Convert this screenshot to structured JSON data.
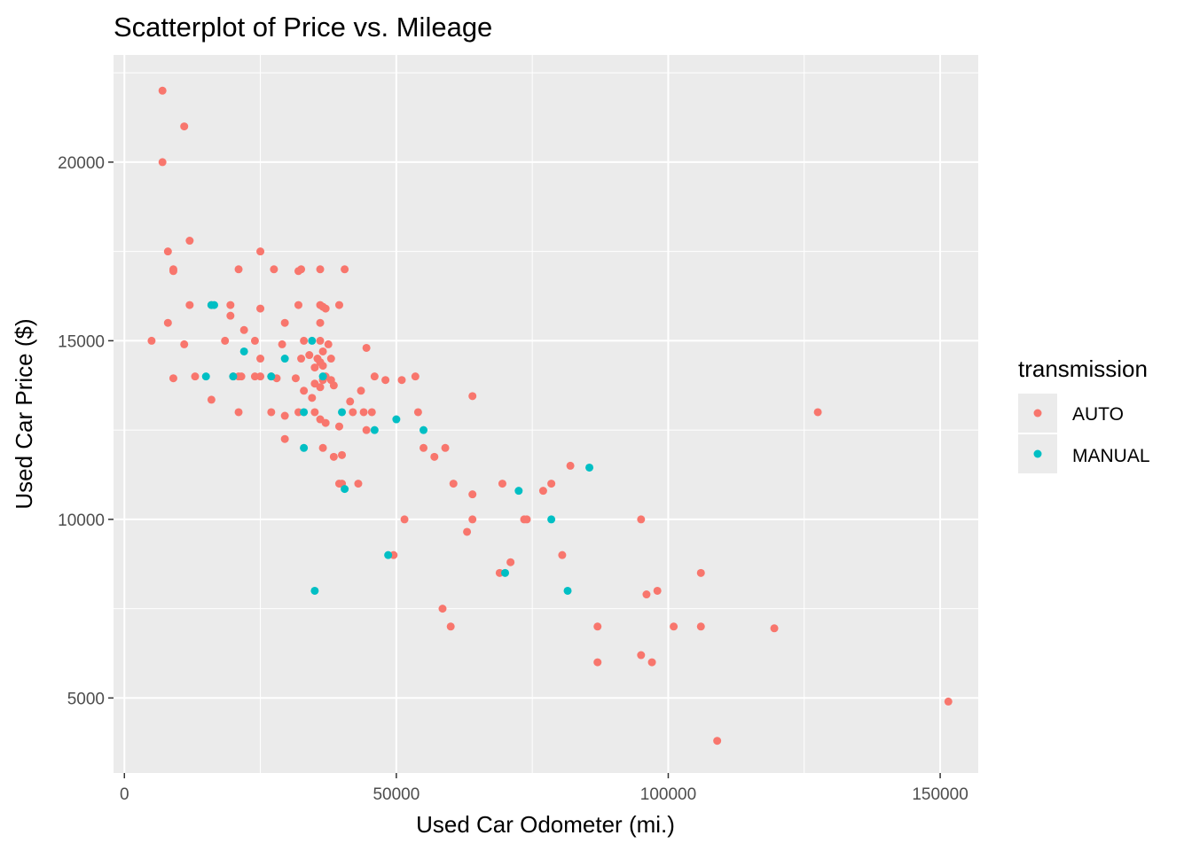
{
  "chart_data": {
    "type": "scatter",
    "title": "Scatterplot of Price vs. Mileage",
    "xlabel": "Used Car Odometer (mi.)",
    "ylabel": "Used Car Price ($)",
    "xlim": [
      -2000,
      157000
    ],
    "ylim": [
      2900,
      23000
    ],
    "x_ticks": [
      0,
      50000,
      100000,
      150000
    ],
    "x_tick_labels": [
      "0",
      "50000",
      "100000",
      "150000"
    ],
    "y_ticks": [
      5000,
      10000,
      15000,
      20000
    ],
    "y_tick_labels": [
      "5000",
      "10000",
      "15000",
      "20000"
    ],
    "grid": true,
    "background": "#ebebeb",
    "legend": {
      "title": "transmission",
      "placement": "right"
    },
    "series": [
      {
        "name": "AUTO",
        "color": "#f8766d",
        "points": [
          [
            7000,
            22000
          ],
          [
            11000,
            21000
          ],
          [
            7000,
            20000
          ],
          [
            12000,
            17800
          ],
          [
            8000,
            17500
          ],
          [
            25000,
            17500
          ],
          [
            9000,
            17000
          ],
          [
            9000,
            16950
          ],
          [
            21000,
            17000
          ],
          [
            27500,
            17000
          ],
          [
            32000,
            16950
          ],
          [
            32500,
            17000
          ],
          [
            36000,
            17000
          ],
          [
            40500,
            17000
          ],
          [
            12000,
            16000
          ],
          [
            16000,
            16000
          ],
          [
            19500,
            16000
          ],
          [
            25000,
            15900
          ],
          [
            32000,
            16000
          ],
          [
            36000,
            16000
          ],
          [
            36500,
            15950
          ],
          [
            37000,
            15900
          ],
          [
            39500,
            16000
          ],
          [
            8000,
            15500
          ],
          [
            19500,
            15700
          ],
          [
            29500,
            15500
          ],
          [
            36000,
            15500
          ],
          [
            22000,
            15300
          ],
          [
            5000,
            15000
          ],
          [
            11000,
            14900
          ],
          [
            18500,
            15000
          ],
          [
            24000,
            15000
          ],
          [
            29000,
            14900
          ],
          [
            33000,
            15000
          ],
          [
            36000,
            15000
          ],
          [
            37500,
            14900
          ],
          [
            44500,
            14800
          ],
          [
            25000,
            14500
          ],
          [
            32500,
            14500
          ],
          [
            34000,
            14600
          ],
          [
            35500,
            14500
          ],
          [
            36000,
            14400
          ],
          [
            36500,
            14700
          ],
          [
            36500,
            14300
          ],
          [
            35000,
            14250
          ],
          [
            38000,
            14500
          ],
          [
            9000,
            13950
          ],
          [
            13000,
            14000
          ],
          [
            20000,
            14000
          ],
          [
            21000,
            14000
          ],
          [
            21500,
            14000
          ],
          [
            24000,
            14000
          ],
          [
            25000,
            14000
          ],
          [
            27000,
            14000
          ],
          [
            28000,
            13950
          ],
          [
            31500,
            13950
          ],
          [
            33000,
            13600
          ],
          [
            35000,
            13800
          ],
          [
            36000,
            13700
          ],
          [
            36500,
            13900
          ],
          [
            37000,
            14000
          ],
          [
            38000,
            13900
          ],
          [
            38500,
            13750
          ],
          [
            43500,
            13600
          ],
          [
            46000,
            14000
          ],
          [
            48000,
            13900
          ],
          [
            51000,
            13900
          ],
          [
            53500,
            14000
          ],
          [
            16000,
            13350
          ],
          [
            34500,
            13400
          ],
          [
            41500,
            13300
          ],
          [
            64000,
            13450
          ],
          [
            21000,
            13000
          ],
          [
            27000,
            13000
          ],
          [
            29500,
            12900
          ],
          [
            32000,
            13000
          ],
          [
            35000,
            13000
          ],
          [
            36000,
            12800
          ],
          [
            37000,
            12700
          ],
          [
            39500,
            12600
          ],
          [
            42000,
            13000
          ],
          [
            44000,
            13000
          ],
          [
            45500,
            13000
          ],
          [
            44500,
            12500
          ],
          [
            54000,
            13000
          ],
          [
            29500,
            12250
          ],
          [
            36500,
            12000
          ],
          [
            38500,
            11750
          ],
          [
            40000,
            11800
          ],
          [
            55000,
            12000
          ],
          [
            57000,
            11750
          ],
          [
            59000,
            12000
          ],
          [
            39500,
            11000
          ],
          [
            40000,
            11000
          ],
          [
            43000,
            11000
          ],
          [
            60500,
            11000
          ],
          [
            64000,
            10700
          ],
          [
            69500,
            11000
          ],
          [
            77000,
            10800
          ],
          [
            78500,
            11000
          ],
          [
            82000,
            11500
          ],
          [
            51500,
            10000
          ],
          [
            64000,
            10000
          ],
          [
            73500,
            10000
          ],
          [
            74000,
            10000
          ],
          [
            95000,
            10000
          ],
          [
            63000,
            9650
          ],
          [
            49500,
            9000
          ],
          [
            69000,
            8500
          ],
          [
            71000,
            8800
          ],
          [
            80500,
            9000
          ],
          [
            106000,
            8500
          ],
          [
            96000,
            7900
          ],
          [
            98000,
            8000
          ],
          [
            58500,
            7500
          ],
          [
            60000,
            7000
          ],
          [
            87000,
            7000
          ],
          [
            101000,
            7000
          ],
          [
            106000,
            7000
          ],
          [
            119500,
            6950
          ],
          [
            87000,
            6000
          ],
          [
            95000,
            6200
          ],
          [
            97000,
            6000
          ],
          [
            127500,
            13000
          ],
          [
            109000,
            3800
          ],
          [
            151500,
            4900
          ]
        ]
      },
      {
        "name": "MANUAL",
        "color": "#00bfc4",
        "points": [
          [
            16000,
            16000
          ],
          [
            16500,
            16000
          ],
          [
            22000,
            14700
          ],
          [
            29500,
            14500
          ],
          [
            34500,
            15000
          ],
          [
            15000,
            14000
          ],
          [
            20000,
            14000
          ],
          [
            27000,
            14000
          ],
          [
            36500,
            14000
          ],
          [
            33000,
            13000
          ],
          [
            40000,
            13000
          ],
          [
            50000,
            12800
          ],
          [
            46000,
            12500
          ],
          [
            55000,
            12500
          ],
          [
            33000,
            12000
          ],
          [
            40500,
            10850
          ],
          [
            72500,
            10800
          ],
          [
            85500,
            11450
          ],
          [
            78500,
            10000
          ],
          [
            48500,
            9000
          ],
          [
            70000,
            8500
          ],
          [
            81500,
            8000
          ],
          [
            35000,
            8000
          ]
        ]
      }
    ]
  }
}
